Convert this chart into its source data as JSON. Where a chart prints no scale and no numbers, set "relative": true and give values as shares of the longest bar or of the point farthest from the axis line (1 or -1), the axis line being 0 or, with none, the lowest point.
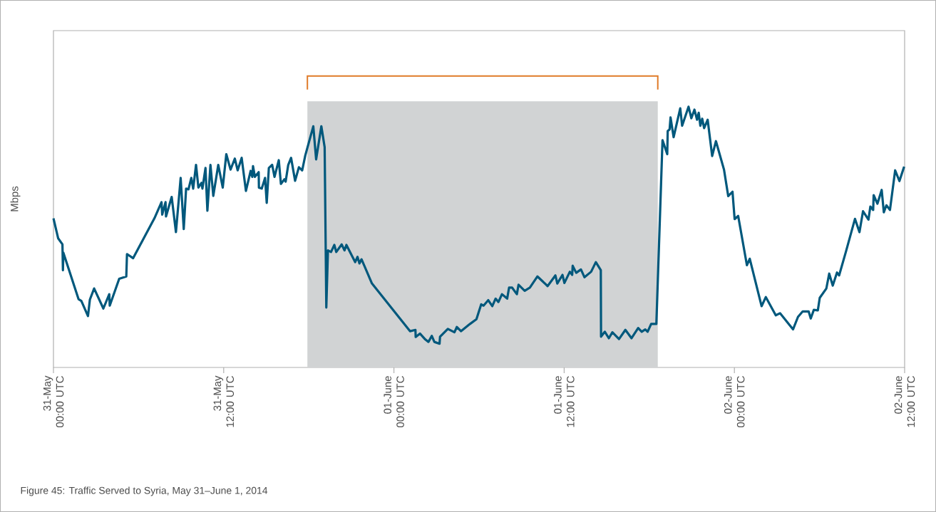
{
  "chart_data": {
    "type": "line",
    "ylabel": "Mbps",
    "relative": true,
    "color": "#00587c",
    "xlim": [
      "2014-05-31T00:00",
      "2014-06-02T12:00"
    ],
    "xticks": [
      {
        "value": "2014-05-31T00:00",
        "label": "31-May 00:00 UTC"
      },
      {
        "value": "2014-05-31T12:00",
        "label": "31-May 12:00 UTC"
      },
      {
        "value": "2014-06-01T00:00",
        "label": "01-June 00:00 UTC"
      },
      {
        "value": "2014-06-01T12:00",
        "label": "01-June 12:00 UTC"
      },
      {
        "value": "2014-06-02T00:00",
        "label": "02-June 00:00 UTC"
      },
      {
        "value": "2014-06-02T12:00",
        "label": "02-June 12:00 UTC"
      }
    ],
    "x": [
      "2014-05-31T00:00",
      "2014-05-31T00:20",
      "2014-05-31T00:38",
      "2014-05-31T00:40",
      "2014-05-31T00:42",
      "2014-05-31T01:46",
      "2014-05-31T01:58",
      "2014-05-31T02:26",
      "2014-05-31T02:34",
      "2014-05-31T02:52",
      "2014-05-31T03:31",
      "2014-05-31T03:56",
      "2014-05-31T03:58",
      "2014-05-31T04:38",
      "2014-05-31T05:08",
      "2014-05-31T05:11",
      "2014-05-31T05:37",
      "2014-05-31T07:07",
      "2014-05-31T07:37",
      "2014-05-31T07:40",
      "2014-05-31T07:54",
      "2014-05-31T07:56",
      "2014-05-31T08:20",
      "2014-05-31T08:38",
      "2014-05-31T08:58",
      "2014-05-31T09:11",
      "2014-05-31T09:21",
      "2014-05-31T09:31",
      "2014-05-31T09:43",
      "2014-05-31T09:51",
      "2014-05-31T10:03",
      "2014-05-31T10:13",
      "2014-05-31T10:26",
      "2014-05-31T10:30",
      "2014-05-31T10:43",
      "2014-05-31T10:51",
      "2014-05-31T11:04",
      "2014-05-31T11:16",
      "2014-05-31T11:37",
      "2014-05-31T11:56",
      "2014-05-31T12:11",
      "2014-05-31T12:29",
      "2014-05-31T12:47",
      "2014-05-31T12:59",
      "2014-05-31T13:16",
      "2014-05-31T13:34",
      "2014-05-31T13:54",
      "2014-05-31T14:01",
      "2014-05-31T14:04",
      "2014-05-31T14:12",
      "2014-05-31T14:28",
      "2014-05-31T14:29",
      "2014-05-31T14:41",
      "2014-05-31T14:55",
      "2014-05-31T15:02",
      "2014-05-31T15:11",
      "2014-05-31T15:25",
      "2014-05-31T15:35",
      "2014-05-31T15:53",
      "2014-05-31T16:02",
      "2014-05-31T16:17",
      "2014-05-31T16:22",
      "2014-05-31T16:33",
      "2014-05-31T16:45",
      "2014-05-31T17:02",
      "2014-05-31T17:18",
      "2014-05-31T17:32",
      "2014-05-31T17:45",
      "2014-05-31T18:19",
      "2014-05-31T18:31",
      "2014-05-31T18:53",
      "2014-05-31T19:07",
      "2014-05-31T19:14",
      "2014-05-31T19:21",
      "2014-05-31T19:34",
      "2014-05-31T19:48",
      "2014-05-31T19:56",
      "2014-05-31T20:19",
      "2014-05-31T20:31",
      "2014-05-31T20:39",
      "2014-05-31T21:16",
      "2014-05-31T21:26",
      "2014-05-31T21:34",
      "2014-05-31T21:43",
      "2014-05-31T22:27",
      "2014-06-01T01:08",
      "2014-06-01T01:31",
      "2014-06-01T01:32",
      "2014-06-01T01:50",
      "2014-06-01T02:13",
      "2014-06-01T02:26",
      "2014-06-01T02:40",
      "2014-06-01T02:51",
      "2014-06-01T03:13",
      "2014-06-01T03:15",
      "2014-06-01T03:48",
      "2014-06-01T04:16",
      "2014-06-01T04:26",
      "2014-06-01T04:44",
      "2014-06-01T05:22",
      "2014-06-01T05:49",
      "2014-06-01T06:09",
      "2014-06-01T06:19",
      "2014-06-01T06:39",
      "2014-06-01T06:56",
      "2014-06-01T07:10",
      "2014-06-01T07:22",
      "2014-06-01T07:37",
      "2014-06-01T07:59",
      "2014-06-01T08:07",
      "2014-06-01T08:20",
      "2014-06-01T08:40",
      "2014-06-01T08:47",
      "2014-06-01T09:13",
      "2014-06-01T09:35",
      "2014-06-01T10:07",
      "2014-06-01T10:50",
      "2014-06-01T11:23",
      "2014-06-01T11:31",
      "2014-06-01T11:53",
      "2014-06-01T12:01",
      "2014-06-01T12:24",
      "2014-06-01T12:34",
      "2014-06-01T12:36",
      "2014-06-01T12:51",
      "2014-06-01T13:11",
      "2014-06-01T13:26",
      "2014-06-01T13:54",
      "2014-06-01T14:14",
      "2014-06-01T14:35",
      "2014-06-01T14:36",
      "2014-06-01T14:52",
      "2014-06-01T15:09",
      "2014-06-01T15:24",
      "2014-06-01T15:52",
      "2014-06-01T16:19",
      "2014-06-01T16:45",
      "2014-06-01T17:13",
      "2014-06-01T17:28",
      "2014-06-01T17:43",
      "2014-06-01T17:53",
      "2014-06-01T18:08",
      "2014-06-01T18:30",
      "2014-06-01T18:56",
      "2014-06-01T19:16",
      "2014-06-01T19:18",
      "2014-06-01T19:26",
      "2014-06-01T19:30",
      "2014-06-01T19:43",
      "2014-06-01T20:11",
      "2014-06-01T20:19",
      "2014-06-01T20:46",
      "2014-06-01T20:58",
      "2014-06-01T21:11",
      "2014-06-01T21:22",
      "2014-06-01T21:29",
      "2014-06-01T21:36",
      "2014-06-01T21:44",
      "2014-06-01T21:52",
      "2014-06-01T22:07",
      "2014-06-01T22:26",
      "2014-06-01T22:42",
      "2014-06-01T23:16",
      "2014-06-01T23:34",
      "2014-06-01T23:52",
      "2014-06-02T00:01",
      "2014-06-02T00:16",
      "2014-06-02T00:53",
      "2014-06-02T01:05",
      "2014-06-02T01:55",
      "2014-06-02T02:13",
      "2014-06-02T02:55",
      "2014-06-02T03:13",
      "2014-06-02T04:08",
      "2014-06-02T04:29",
      "2014-06-02T04:49",
      "2014-06-02T05:14",
      "2014-06-02T05:23",
      "2014-06-02T05:36",
      "2014-06-02T05:53",
      "2014-06-02T06:01",
      "2014-06-02T06:29",
      "2014-06-02T06:41",
      "2014-06-02T06:56",
      "2014-06-02T07:14",
      "2014-06-02T07:23",
      "2014-06-02T07:52",
      "2014-06-02T08:30",
      "2014-06-02T08:49",
      "2014-06-02T09:04",
      "2014-06-02T09:27",
      "2014-06-02T09:35",
      "2014-06-02T09:47",
      "2014-06-02T09:49",
      "2014-06-02T10:05",
      "2014-06-02T10:23",
      "2014-06-02T10:32",
      "2014-06-02T10:43",
      "2014-06-02T10:58",
      "2014-06-02T11:20",
      "2014-06-02T11:38",
      "2014-06-02T11:58"
    ],
    "values": [
      0.572,
      0.495,
      0.472,
      0.373,
      0.44,
      0.262,
      0.255,
      0.197,
      0.26,
      0.303,
      0.226,
      0.281,
      0.237,
      0.34,
      0.349,
      0.435,
      0.419,
      0.572,
      0.634,
      0.586,
      0.634,
      0.579,
      0.654,
      0.519,
      0.727,
      0.531,
      0.686,
      0.683,
      0.727,
      0.686,
      0.777,
      0.69,
      0.708,
      0.686,
      0.765,
      0.601,
      0.777,
      0.658,
      0.777,
      0.69,
      0.818,
      0.759,
      0.801,
      0.756,
      0.804,
      0.677,
      0.754,
      0.731,
      0.772,
      0.731,
      0.749,
      0.69,
      0.686,
      0.727,
      0.631,
      0.765,
      0.777,
      0.731,
      0.795,
      0.704,
      0.722,
      0.713,
      0.777,
      0.804,
      0.716,
      0.768,
      0.756,
      0.813,
      0.925,
      0.798,
      0.925,
      0.845,
      0.23,
      0.449,
      0.443,
      0.47,
      0.443,
      0.472,
      0.449,
      0.47,
      0.404,
      0.424,
      0.399,
      0.415,
      0.322,
      0.139,
      0.144,
      0.117,
      0.13,
      0.107,
      0.098,
      0.121,
      0.098,
      0.091,
      0.118,
      0.148,
      0.135,
      0.155,
      0.139,
      0.167,
      0.185,
      0.242,
      0.237,
      0.258,
      0.235,
      0.264,
      0.251,
      0.281,
      0.264,
      0.306,
      0.306,
      0.281,
      0.317,
      0.294,
      0.306,
      0.349,
      0.312,
      0.353,
      0.322,
      0.355,
      0.324,
      0.367,
      0.355,
      0.39,
      0.363,
      0.376,
      0.346,
      0.367,
      0.404,
      0.373,
      0.118,
      0.137,
      0.112,
      0.135,
      0.109,
      0.144,
      0.112,
      0.151,
      0.137,
      0.146,
      0.137,
      0.167,
      0.167,
      0.872,
      0.818,
      0.907,
      0.913,
      0.959,
      0.883,
      0.994,
      0.927,
      1.0,
      0.956,
      0.989,
      0.95,
      0.977,
      0.927,
      0.954,
      0.918,
      0.95,
      0.811,
      0.868,
      0.759,
      0.657,
      0.674,
      0.569,
      0.581,
      0.392,
      0.417,
      0.235,
      0.27,
      0.2,
      0.208,
      0.146,
      0.194,
      0.215,
      0.215,
      0.188,
      0.221,
      0.219,
      0.267,
      0.303,
      0.36,
      0.314,
      0.364,
      0.353,
      0.445,
      0.57,
      0.519,
      0.599,
      0.567,
      0.617,
      0.604,
      0.661,
      0.628,
      0.681,
      0.595,
      0.622,
      0.604,
      0.756,
      0.715,
      0.77
    ],
    "bands": [
      {
        "axis": "x",
        "from": "2014-05-31T17:54",
        "to": "2014-06-01T18:36",
        "color": "#d1d3d4"
      }
    ],
    "annotations": [
      "Figure 45: Traffic Served to Syria, May 31–June 1, 2014"
    ]
  }
}
